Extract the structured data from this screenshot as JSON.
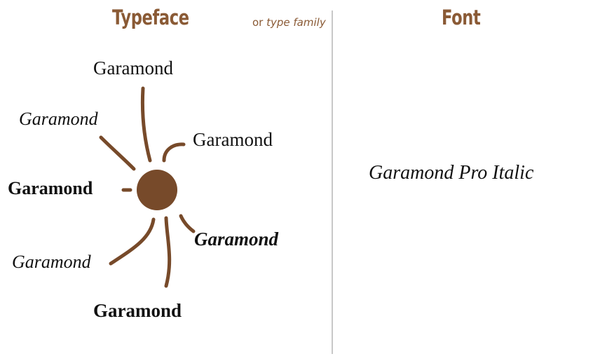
{
  "left_panel": {
    "heading": "Typeface",
    "subtitle_prefix": "or ",
    "subtitle_italic": "type family",
    "samples": {
      "top": "Garamond",
      "upper_right": "Garamond",
      "italic_left": "Garamond",
      "bold_left": "Garamond",
      "bold_italic_right": "Garamond",
      "italic_lower_left": "Garamond",
      "bold_bottom": "Garamond"
    }
  },
  "right_panel": {
    "heading": "Font",
    "sample": "Garamond Pro Italic"
  },
  "colors": {
    "accent_brown": "#8a5a35",
    "hub_brown": "#774a2a",
    "divider_gray": "#c8c8c8"
  }
}
